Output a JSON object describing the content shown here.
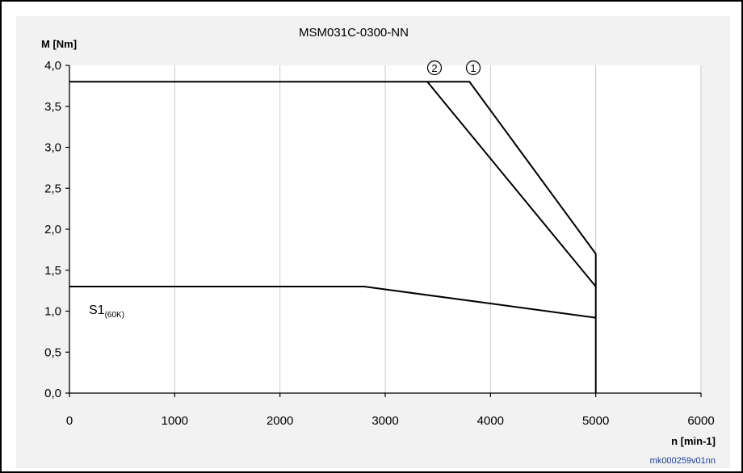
{
  "chart_data": {
    "type": "line",
    "title": "MSM031C-0300-NN",
    "xlabel": "n [min-1]",
    "ylabel": "M [Nm]",
    "xlim": [
      0,
      6000
    ],
    "ylim": [
      0,
      4.0
    ],
    "x_ticks": [
      0,
      1000,
      2000,
      3000,
      4000,
      5000,
      6000
    ],
    "x_tick_labels": [
      "0",
      "1000",
      "2000",
      "3000",
      "4000",
      "5000",
      "6000"
    ],
    "y_ticks": [
      0,
      0.5,
      1.0,
      1.5,
      2.0,
      2.5,
      3.0,
      3.5,
      4.0
    ],
    "y_tick_labels": [
      "0,0",
      "0,5",
      "1,0",
      "1,5",
      "2,0",
      "2,5",
      "3,0",
      "3,5",
      "4,0"
    ],
    "grid": "vertical",
    "series": [
      {
        "name": "①",
        "x": [
          0,
          3800,
          5000,
          5000
        ],
        "y": [
          3.8,
          3.8,
          1.7,
          0
        ]
      },
      {
        "name": "②",
        "x": [
          3400,
          5000
        ],
        "y": [
          3.8,
          1.3
        ]
      },
      {
        "name": "S1(60K)",
        "x": [
          0,
          2800,
          5000
        ],
        "y": [
          1.3,
          1.3,
          0.92
        ]
      }
    ],
    "annotations": {
      "curve1_marker": "1",
      "curve2_marker": "2",
      "s1_main": "S1",
      "s1_sub": "(60K)"
    },
    "credit": "mk000259v01nn"
  }
}
